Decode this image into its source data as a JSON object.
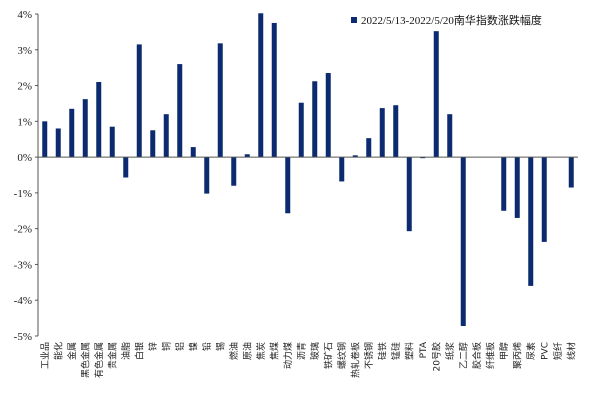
{
  "chart_data": {
    "type": "bar",
    "title": "",
    "xlabel": "",
    "ylabel": "",
    "ylim": [
      -5,
      4
    ],
    "y_ticks": [
      4,
      3,
      2,
      1,
      0,
      -1,
      -2,
      -3,
      -4,
      -5
    ],
    "y_tick_suffix": "%",
    "grid": false,
    "legend_position": "top-right",
    "bar_color": "#0b2a6f",
    "categories": [
      "工业品",
      "能化",
      "金属",
      "黑色金属",
      "有色金属",
      "贵金属",
      "油脂",
      "白银",
      "锌",
      "铜",
      "铝",
      "镍",
      "铅",
      "锡",
      "燃油",
      "原油",
      "焦炭",
      "焦煤",
      "动力煤",
      "沥青",
      "玻璃",
      "铁矿石",
      "螺纹钢",
      "热轧卷板",
      "不锈钢",
      "硅铁",
      "锰硅",
      "塑料",
      "PTA",
      "20号胶",
      "纸浆",
      "乙二醇",
      "胶合板",
      "纤维板",
      "甲醇",
      "聚丙烯",
      "尿素",
      "PVC",
      "短纤",
      "线材"
    ],
    "series": [
      {
        "name": "2022/5/13-2022/5/20南华指数涨跌幅度",
        "values": [
          1.0,
          0.8,
          1.35,
          1.62,
          2.1,
          0.85,
          -0.57,
          3.15,
          0.75,
          1.2,
          2.6,
          0.28,
          -1.02,
          3.18,
          -0.8,
          0.08,
          4.02,
          3.75,
          -1.57,
          1.52,
          2.12,
          2.35,
          -0.68,
          0.05,
          0.53,
          1.37,
          1.45,
          -2.07,
          -0.03,
          3.52,
          1.2,
          -4.72,
          0.0,
          0.0,
          -1.5,
          -1.7,
          -3.6,
          -2.37,
          0.0,
          -0.85
        ]
      }
    ]
  }
}
